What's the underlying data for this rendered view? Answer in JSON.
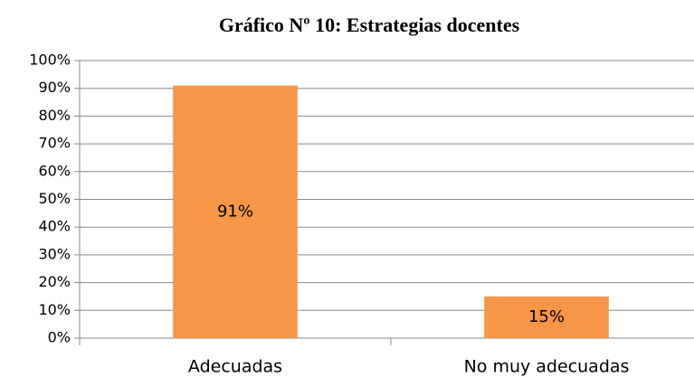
{
  "chart_data": {
    "type": "bar",
    "title": "Gráfico Nº 10: Estrategias docentes",
    "categories": [
      "Adecuadas",
      "No muy adecuadas"
    ],
    "values": [
      91,
      15
    ],
    "value_labels": [
      "91%",
      "15%"
    ],
    "color": "#f79646",
    "ylim": [
      0,
      100
    ],
    "yticks": [
      {
        "value": 0,
        "label": "0%"
      },
      {
        "value": 10,
        "label": "10%"
      },
      {
        "value": 20,
        "label": "20%"
      },
      {
        "value": 30,
        "label": "30%"
      },
      {
        "value": 40,
        "label": "40%"
      },
      {
        "value": 50,
        "label": "50%"
      },
      {
        "value": 60,
        "label": "60%"
      },
      {
        "value": 70,
        "label": "70%"
      },
      {
        "value": 80,
        "label": "80%"
      },
      {
        "value": 90,
        "label": "90%"
      },
      {
        "value": 100,
        "label": "100%"
      }
    ],
    "grid": true
  }
}
